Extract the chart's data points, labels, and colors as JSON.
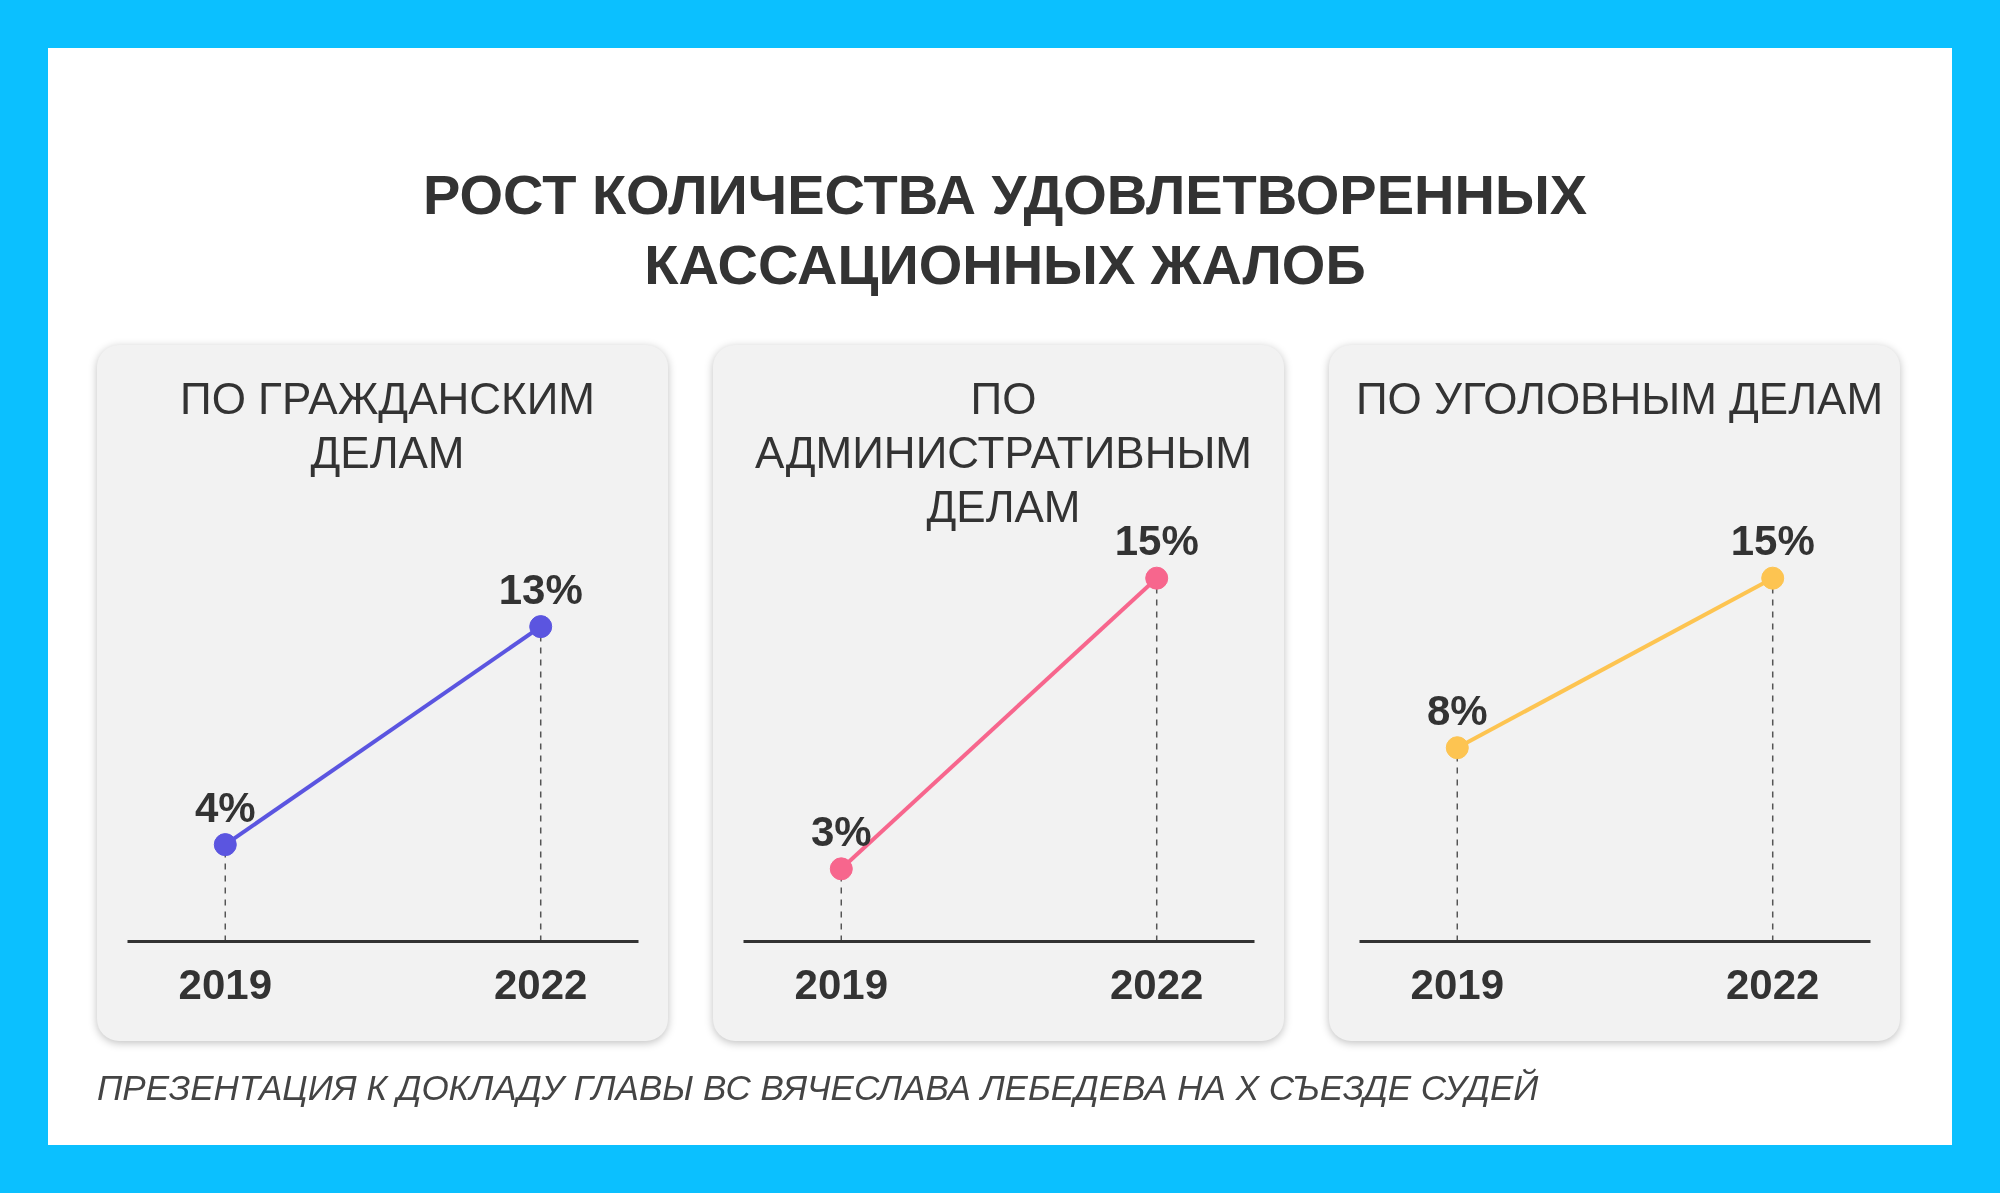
{
  "chart_data": [
    {
      "type": "other",
      "title": "РОСТ КОЛИЧЕСТВА УДОВЛЕТВОРЕННЫХ КАССАЦИОННЫХ ЖАЛОБ",
      "annotations": [
        "ПРЕЗЕНТАЦИЯ К ДОКЛАДУ ГЛАВЫ ВС ВЯЧЕСЛАВА ЛЕБЕДЕВА НА X СЪЕЗДЕ СУДЕЙ"
      ]
    },
    {
      "type": "line",
      "title": "ПО ГРАЖДАНСКИМ ДЕЛАМ",
      "categories": [
        "2019",
        "2022"
      ],
      "series": [
        {
          "color": "#5b55e0",
          "values": [
            4,
            13
          ],
          "value_labels": [
            "4%",
            "13%"
          ]
        }
      ],
      "marker": "circle"
    },
    {
      "type": "line",
      "title": "ПО АДМИНИСТРАТИВНЫМ ДЕЛАМ",
      "categories": [
        "2019",
        "2022"
      ],
      "series": [
        {
          "color": "#f7668d",
          "values": [
            3,
            15
          ],
          "value_labels": [
            "3%",
            "15%"
          ]
        }
      ],
      "marker": "circle"
    },
    {
      "type": "line",
      "title": "ПО УГОЛОВНЫМ ДЕЛАМ",
      "categories": [
        "2019",
        "2022"
      ],
      "series": [
        {
          "color": "#fdc451",
          "values": [
            8,
            15
          ],
          "value_labels": [
            "8%",
            "15%"
          ]
        }
      ],
      "marker": "circle"
    }
  ]
}
